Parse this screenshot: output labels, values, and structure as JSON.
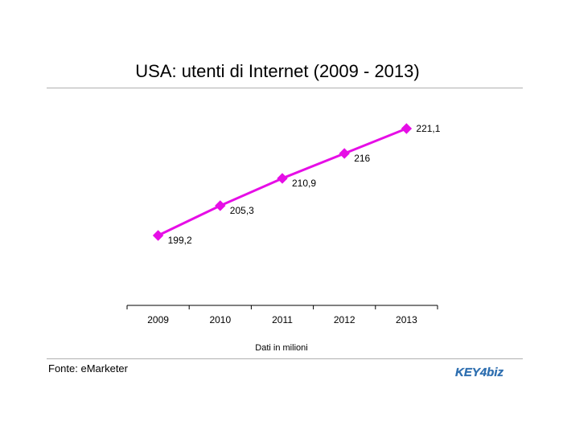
{
  "title": "USA: utenti di Internet (2009 - 2013)",
  "source": "Fonte: eMarketer",
  "logo_text": "KEY4biz",
  "colors": {
    "series": "#e60ee6",
    "axis": "#000000",
    "rule": "#b0b0b0",
    "logo": "#2e6fb0"
  },
  "chart_data": {
    "type": "line",
    "title": "USA: utenti di Internet (2009 - 2013)",
    "xlabel": "Dati in milioni",
    "ylabel": "",
    "categories": [
      "2009",
      "2010",
      "2011",
      "2012",
      "2013"
    ],
    "series": [
      {
        "values": [
          199.2,
          205.3,
          210.9,
          216,
          221.1
        ],
        "labels": [
          "199,2",
          "205,3",
          "210,9",
          "216",
          "221,1"
        ]
      }
    ],
    "ylim": [
      180,
      225
    ],
    "grid": false,
    "legend": "none",
    "marker": "diamond"
  }
}
